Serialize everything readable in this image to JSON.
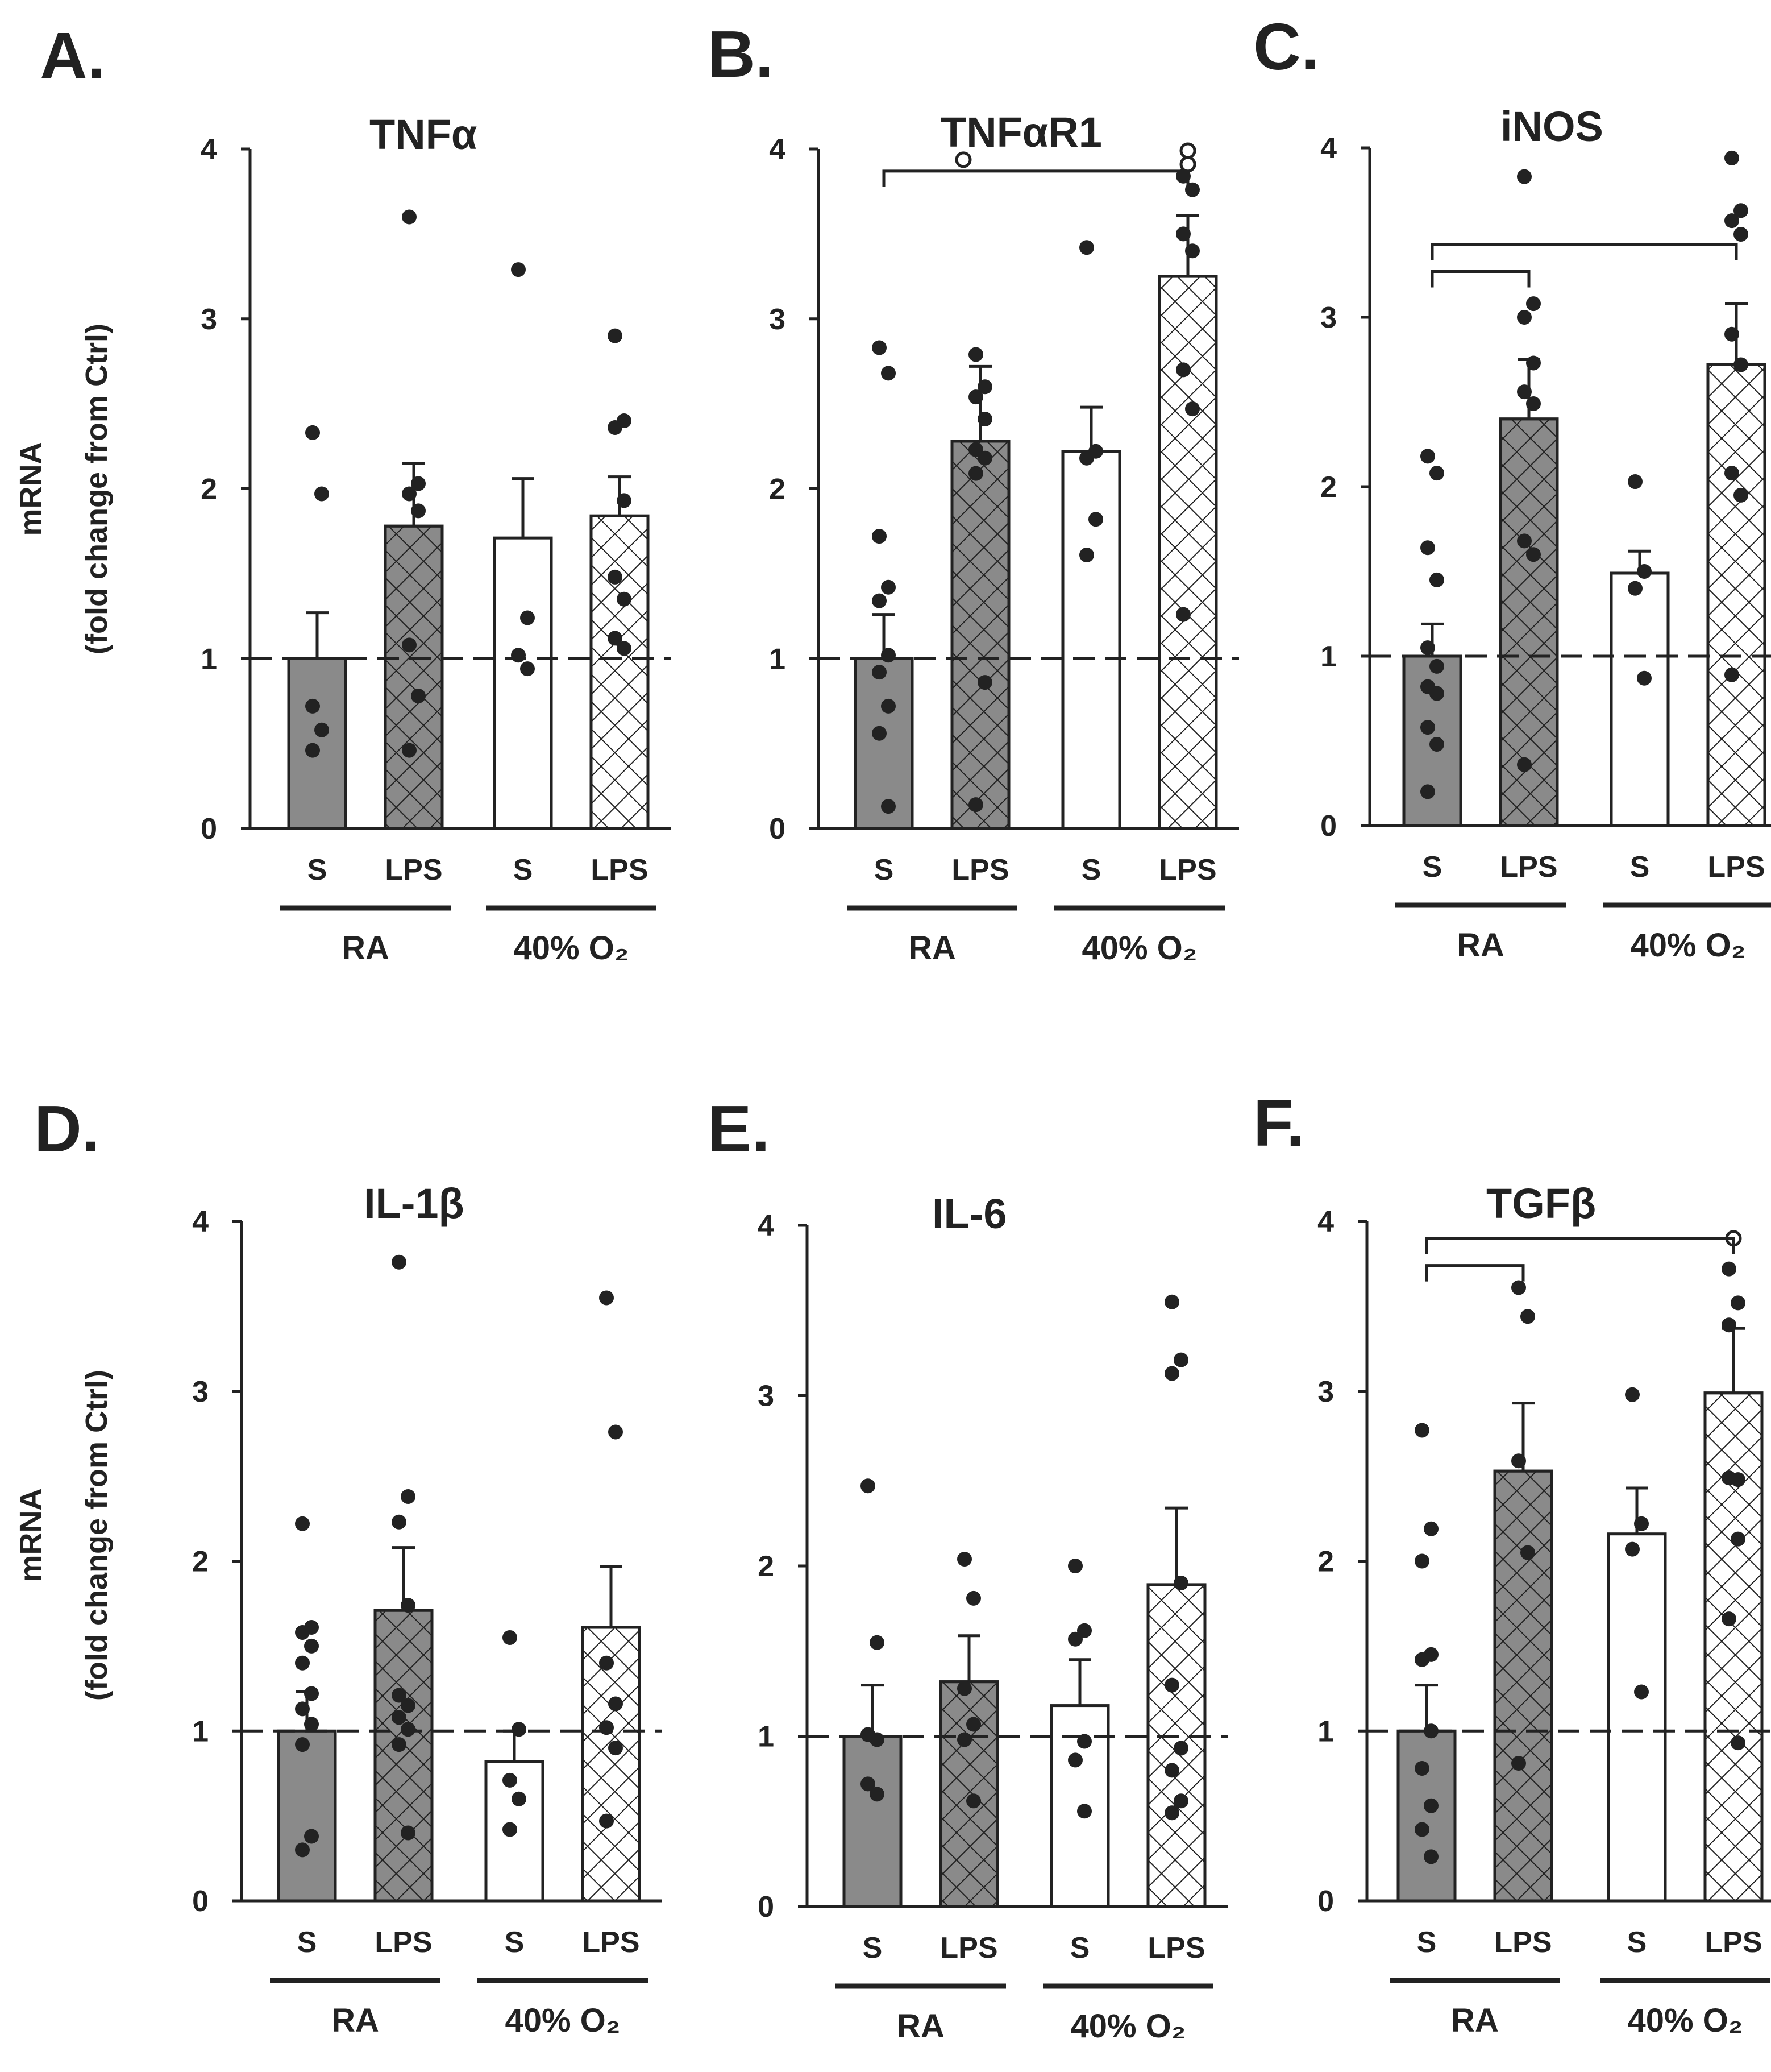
{
  "figure": {
    "panel_letters": [
      "A.",
      "B.",
      "C.",
      "D.",
      "E.",
      "F."
    ],
    "ylabel_line1": "mRNA",
    "ylabel_line2": "(fold change from Ctrl)"
  },
  "colors": {
    "ra_fill": "#8a8a8a",
    "o2_fill": "#ffffff",
    "ink": "#222222"
  },
  "chart_data": [
    {
      "type": "bar",
      "panel": "A.",
      "title": "TNFα",
      "categories": [
        "S",
        "LPS",
        "S",
        "LPS"
      ],
      "groups": [
        "RA",
        "40% O₂"
      ],
      "ylabel": "mRNA (fold change from Ctrl)",
      "ylim": [
        0,
        4
      ],
      "yticks": [
        "0",
        "1",
        "2",
        "3",
        "4"
      ],
      "reference_line": 1,
      "values": [
        1.0,
        1.78,
        1.71,
        1.84
      ],
      "errors": [
        0.27,
        0.37,
        0.35,
        0.23
      ],
      "points": [
        [
          2.33,
          1.97,
          0.72,
          0.58,
          0.46
        ],
        [
          3.6,
          2.03,
          1.97,
          1.87,
          1.08,
          0.78,
          0.46
        ],
        [
          3.29,
          1.24,
          1.02,
          0.94
        ],
        [
          2.9,
          2.4,
          2.36,
          1.93,
          1.48,
          1.35,
          1.12,
          1.06
        ]
      ],
      "open_points": [
        [],
        [],
        [],
        []
      ],
      "significance": []
    },
    {
      "type": "bar",
      "panel": "B.",
      "title": "TNFαR1",
      "categories": [
        "S",
        "LPS",
        "S",
        "LPS"
      ],
      "groups": [
        "RA",
        "40% O₂"
      ],
      "ylabel": "mRNA (fold change from Ctrl)",
      "ylim": [
        0,
        4
      ],
      "yticks": [
        "0",
        "1",
        "2",
        "3",
        "4"
      ],
      "reference_line": 1,
      "values": [
        1.0,
        2.28,
        2.22,
        3.25
      ],
      "errors": [
        0.26,
        0.44,
        0.26,
        0.36
      ],
      "points": [
        [
          2.83,
          2.68,
          1.72,
          1.42,
          1.34,
          1.02,
          0.92,
          0.72,
          0.56,
          0.13
        ],
        [
          2.79,
          2.6,
          2.54,
          2.41,
          2.23,
          2.18,
          2.09,
          0.86,
          0.14
        ],
        [
          3.42,
          2.22,
          2.18,
          1.82,
          1.61
        ],
        [
          3.84,
          3.76,
          3.5,
          3.4,
          2.7,
          2.47,
          1.26
        ]
      ],
      "open_points": [
        [],
        [],
        [],
        [
          3.99,
          3.91
        ]
      ],
      "significance": [
        {
          "from": 0,
          "to": 3,
          "y": 3.87,
          "mark": "°"
        }
      ]
    },
    {
      "type": "bar",
      "panel": "C.",
      "title": "iNOS",
      "categories": [
        "S",
        "LPS",
        "S",
        "LPS"
      ],
      "groups": [
        "RA",
        "40% O₂"
      ],
      "ylabel": "mRNA (fold change from Ctrl)",
      "ylim": [
        0,
        4
      ],
      "yticks": [
        "0",
        "1",
        "2",
        "3",
        "4"
      ],
      "reference_line": 1,
      "values": [
        1.0,
        2.4,
        1.49,
        2.72
      ],
      "errors": [
        0.19,
        0.35,
        0.13,
        0.36
      ],
      "points": [
        [
          2.18,
          2.08,
          1.64,
          1.45,
          1.05,
          0.94,
          0.82,
          0.78,
          0.58,
          0.48,
          0.2
        ],
        [
          3.83,
          3.08,
          3.0,
          2.73,
          2.56,
          2.49,
          1.68,
          1.6,
          0.36
        ],
        [
          2.03,
          1.5,
          1.4,
          0.87
        ],
        [
          3.94,
          3.63,
          3.57,
          3.49,
          2.9,
          2.72,
          2.08,
          1.95,
          0.89
        ]
      ],
      "open_points": [
        [],
        [],
        [],
        []
      ],
      "significance": [
        {
          "from": 0,
          "to": 3,
          "y": 3.43,
          "mark": ""
        },
        {
          "from": 0,
          "to": 1,
          "y": 3.27,
          "mark": ""
        }
      ]
    },
    {
      "type": "bar",
      "panel": "D.",
      "title": "IL-1β",
      "categories": [
        "S",
        "LPS",
        "S",
        "LPS"
      ],
      "groups": [
        "RA",
        "40% O₂"
      ],
      "ylabel": "mRNA (fold change from Ctrl)",
      "ylim": [
        0,
        4
      ],
      "yticks": [
        "0",
        "1",
        "2",
        "3",
        "4"
      ],
      "reference_line": 1,
      "values": [
        1.0,
        1.71,
        0.82,
        1.61
      ],
      "errors": [
        0.23,
        0.37,
        0.18,
        0.36
      ],
      "points": [
        [
          2.22,
          1.61,
          1.58,
          1.5,
          1.4,
          1.22,
          1.13,
          1.04,
          0.92,
          0.38,
          0.3
        ],
        [
          3.76,
          2.38,
          2.23,
          1.74,
          1.21,
          1.15,
          1.08,
          1.01,
          0.92,
          0.4
        ],
        [
          1.55,
          1.01,
          0.71,
          0.6,
          0.42
        ],
        [
          3.55,
          2.76,
          1.4,
          1.16,
          1.02,
          0.9,
          0.47
        ]
      ],
      "open_points": [
        [],
        [],
        [],
        []
      ],
      "significance": []
    },
    {
      "type": "bar",
      "panel": "E.",
      "title": "IL-6",
      "categories": [
        "S",
        "LPS",
        "S",
        "LPS"
      ],
      "groups": [
        "RA",
        "40% O₂"
      ],
      "ylabel": "mRNA (fold change from Ctrl)",
      "ylim": [
        0,
        4
      ],
      "yticks": [
        "0",
        "1",
        "2",
        "3",
        "4"
      ],
      "reference_line": 1,
      "values": [
        1.0,
        1.32,
        1.18,
        1.89
      ],
      "errors": [
        0.3,
        0.27,
        0.27,
        0.45
      ],
      "points": [
        [
          2.47,
          1.55,
          1.01,
          0.98,
          0.72,
          0.66
        ],
        [
          2.04,
          1.81,
          1.28,
          1.07,
          0.98,
          0.62
        ],
        [
          2.0,
          1.62,
          1.57,
          0.97,
          0.86,
          0.56
        ],
        [
          3.55,
          3.21,
          3.13,
          1.9,
          1.3,
          0.93,
          0.8,
          0.62,
          0.55
        ]
      ],
      "open_points": [
        [],
        [],
        [],
        []
      ],
      "significance": []
    },
    {
      "type": "bar",
      "panel": "F.",
      "title": "TGFβ",
      "categories": [
        "S",
        "LPS",
        "S",
        "LPS"
      ],
      "groups": [
        "RA",
        "40% O₂"
      ],
      "ylabel": "mRNA (fold change from Ctrl)",
      "ylim": [
        0,
        4
      ],
      "yticks": [
        "0",
        "1",
        "2",
        "3",
        "4"
      ],
      "reference_line": 1,
      "values": [
        1.0,
        2.53,
        2.16,
        2.99
      ],
      "errors": [
        0.27,
        0.4,
        0.27,
        0.38
      ],
      "points": [
        [
          2.77,
          2.19,
          2.0,
          1.45,
          1.42,
          1.0,
          0.78,
          0.56,
          0.42,
          0.26
        ],
        [
          3.61,
          3.44,
          2.59,
          2.05,
          0.81
        ],
        [
          2.98,
          2.22,
          2.07,
          1.23
        ],
        [
          3.72,
          3.52,
          3.39,
          2.48,
          2.49,
          2.13,
          1.66,
          0.93
        ]
      ],
      "open_points": [
        [],
        [],
        [],
        [
          3.9
        ]
      ],
      "significance": [
        {
          "from": 0,
          "to": 3,
          "y": 3.9,
          "mark": ""
        },
        {
          "from": 0,
          "to": 1,
          "y": 3.74,
          "mark": ""
        }
      ]
    }
  ]
}
